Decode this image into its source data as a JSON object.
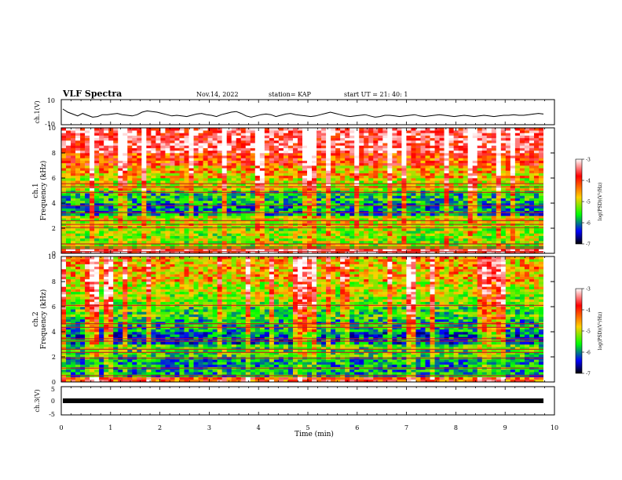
{
  "header": {
    "title": "VLF Spectra",
    "date": "Nov.14, 2022",
    "station": "station= KAP",
    "start": "start  UT =  21: 40: 1"
  },
  "colorbar": {
    "label": "log(PSD)(V²/Hz)",
    "ticks": [
      "-3",
      "-4",
      "-5",
      "-6",
      "-7"
    ],
    "colors": [
      "#ffffff",
      "#ff0000",
      "#ffd000",
      "#00ff00",
      "#0000ff",
      "#000000"
    ]
  },
  "chart_data": [
    {
      "type": "line",
      "panel": "ch1-voltage",
      "ylabel": "ch.1(V)",
      "ylim": [
        -10,
        10
      ],
      "yticks": [
        "10",
        "-10"
      ],
      "xlim": [
        0,
        10
      ],
      "x_step_min": 0.1,
      "values": [
        2.5,
        0,
        -1.5,
        -3,
        -1,
        -2.5,
        -4,
        -3.5,
        -2,
        -2,
        -1.5,
        -1,
        -2,
        -2.5,
        -3,
        -2,
        0,
        1,
        0.5,
        0,
        -1,
        -2,
        -3,
        -2.5,
        -3,
        -3.5,
        -2.5,
        -1.5,
        -1,
        -2,
        -2.5,
        -3.5,
        -2,
        -1,
        0,
        0.5,
        -1,
        -3,
        -4,
        -3,
        -2,
        -1.5,
        -2,
        -3.5,
        -2.5,
        -1.5,
        -1,
        -2,
        -2.5,
        -3,
        -3.5,
        -3,
        -2,
        -1,
        0,
        -1,
        -2,
        -3,
        -3.5,
        -3,
        -2.5,
        -2,
        -3,
        -4,
        -3.5,
        -2.5,
        -2.5,
        -3,
        -3.5,
        -3,
        -2.5,
        -2,
        -3,
        -3.5,
        -3,
        -2.5,
        -2,
        -2.5,
        -3,
        -3.5,
        -3,
        -2.5,
        -3,
        -3.5,
        -3,
        -2.5,
        -3,
        -3.5,
        -3,
        -2.5,
        -2.5,
        -2,
        -2.5,
        -2.5,
        -2,
        -1.5,
        -1,
        -1.5
      ]
    },
    {
      "type": "heatmap",
      "panel": "ch1-spectrogram",
      "title": "ch.1",
      "ylabel": "Frequency (kHz)",
      "ylim": [
        0,
        10
      ],
      "yticks": [
        "0",
        "2",
        "4",
        "6",
        "8",
        "10"
      ],
      "xlim": [
        0,
        10
      ],
      "zlim": [
        -7,
        -3
      ],
      "lines_khz": [
        0.15,
        0.35,
        0.5,
        0.75,
        2.05,
        2.3,
        2.6,
        3.25,
        3.8,
        4.85,
        5.3,
        5.55
      ],
      "band_levels": [
        {
          "from": 0,
          "to": 0.5,
          "level": -3.5
        },
        {
          "from": 0.5,
          "to": 2,
          "level": -5.0
        },
        {
          "from": 2,
          "to": 3,
          "level": -4.8
        },
        {
          "from": 3,
          "to": 4,
          "level": -5.8
        },
        {
          "from": 4,
          "to": 5,
          "level": -5.5
        },
        {
          "from": 5,
          "to": 6,
          "level": -4.8
        },
        {
          "from": 6,
          "to": 7,
          "level": -4.5
        },
        {
          "from": 7,
          "to": 8,
          "level": -4.0
        },
        {
          "from": 8,
          "to": 10,
          "level": -3.5
        }
      ]
    },
    {
      "type": "heatmap",
      "panel": "ch2-spectrogram",
      "title": "ch.2",
      "ylabel": "Frequency (kHz)",
      "ylim": [
        0,
        10
      ],
      "yticks": [
        "0",
        "2",
        "4",
        "6",
        "8",
        "10"
      ],
      "xlim": [
        0,
        10
      ],
      "zlim": [
        -7,
        -3
      ],
      "lines_khz": [
        0.5,
        1.1,
        1.9,
        2.35,
        2.6,
        3.25,
        3.45,
        4.35,
        4.65,
        6.1
      ],
      "band_levels": [
        {
          "from": 0,
          "to": 0.4,
          "level": -4.0
        },
        {
          "from": 0.4,
          "to": 2,
          "level": -5.7
        },
        {
          "from": 2,
          "to": 3,
          "level": -5.3
        },
        {
          "from": 3,
          "to": 4,
          "level": -6.0
        },
        {
          "from": 4,
          "to": 5,
          "level": -5.6
        },
        {
          "from": 5,
          "to": 6,
          "level": -5.3
        },
        {
          "from": 6,
          "to": 7,
          "level": -5.0
        },
        {
          "from": 7,
          "to": 8,
          "level": -4.8
        },
        {
          "from": 8,
          "to": 10,
          "level": -4.5
        }
      ]
    },
    {
      "type": "line",
      "panel": "ch3-voltage",
      "ylabel": "ch.3(V)",
      "ylim": [
        -5,
        5
      ],
      "yticks": [
        "5",
        "0",
        "-5"
      ],
      "xlim": [
        0,
        10
      ],
      "level_v": 0,
      "xlabel": "Time (min)",
      "xticks": [
        "0",
        "1",
        "2",
        "3",
        "4",
        "5",
        "6",
        "7",
        "8",
        "9",
        "10"
      ]
    }
  ]
}
